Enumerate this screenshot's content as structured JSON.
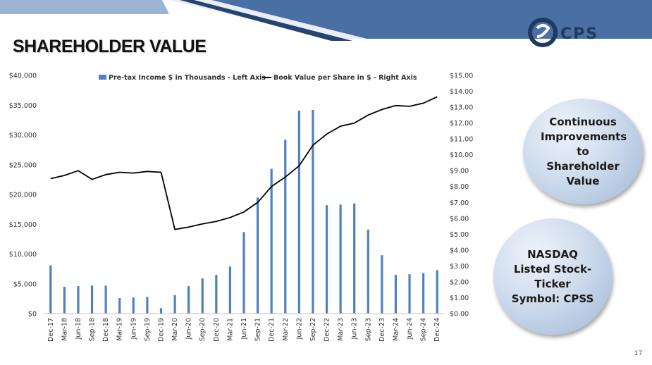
{
  "slide": {
    "title": "SHAREHOLDER VALUE",
    "logo_text": "CPS",
    "page_number": "17",
    "callout_1": "Continuous Improvements to Shareholder Value",
    "callout_2": "NASDAQ Listed Stock- Ticker Symbol: CPSS",
    "colors": {
      "banner": "#4a6fa5",
      "bars": "#4f81bd",
      "line": "#000000"
    }
  },
  "chart_data": {
    "type": "bar",
    "categories": [
      "Dec-17",
      "Mar-18",
      "Jun-18",
      "Sep-18",
      "Dec-18",
      "Mar-19",
      "Jun-19",
      "Sep-19",
      "Dec-19",
      "Mar-20",
      "Jun-20",
      "Sep-20",
      "Dec-20",
      "Mar-21",
      "Jun-21",
      "Sep-21",
      "Dec-21",
      "Mar-22",
      "Jun-22",
      "Sep-22",
      "Dec-22",
      "Mar-23",
      "Jun-23",
      "Sep-23",
      "Dec-23",
      "Mar-24",
      "Jun-24",
      "Sep-24",
      "Dec-24"
    ],
    "series": [
      {
        "name": "Pre-tax Income  $ in Thousands - Left Axis",
        "type": "bar",
        "axis": "left",
        "values": [
          8100,
          4500,
          4600,
          4700,
          4700,
          2600,
          2700,
          2800,
          900,
          3100,
          4600,
          5900,
          6500,
          7900,
          13700,
          19500,
          24300,
          29200,
          34100,
          34200,
          18200,
          18300,
          18500,
          14100,
          9800,
          6500,
          6600,
          6800,
          7300
        ]
      },
      {
        "name": "Book Value per Share in $ - Right Axis",
        "type": "line",
        "axis": "right",
        "values": [
          8.5,
          8.7,
          9.0,
          8.45,
          8.75,
          8.9,
          8.85,
          8.95,
          8.9,
          5.3,
          5.45,
          5.65,
          5.8,
          6.05,
          6.4,
          7.0,
          8.0,
          8.6,
          9.3,
          10.6,
          11.3,
          11.8,
          12.0,
          12.5,
          12.85,
          13.1,
          13.05,
          13.25,
          13.65
        ]
      }
    ],
    "left_axis": {
      "ticks": [
        "$0",
        "$5,000",
        "$10,000",
        "$15,000",
        "$20,000",
        "$25,000",
        "$30,000",
        "$35,000",
        "$40,000"
      ],
      "ylim": [
        0,
        40000
      ]
    },
    "right_axis": {
      "ticks": [
        "$0.00",
        "$1.00",
        "$2.00",
        "$3.00",
        "$4.00",
        "$5.00",
        "$6.00",
        "$7.00",
        "$8.00",
        "$9.00",
        "$10.00",
        "$11.00",
        "$12.00",
        "$13.00",
        "$14.00",
        "$15.00"
      ],
      "ylim": [
        0,
        15
      ]
    },
    "legend_position": "top-center",
    "grid": false
  }
}
